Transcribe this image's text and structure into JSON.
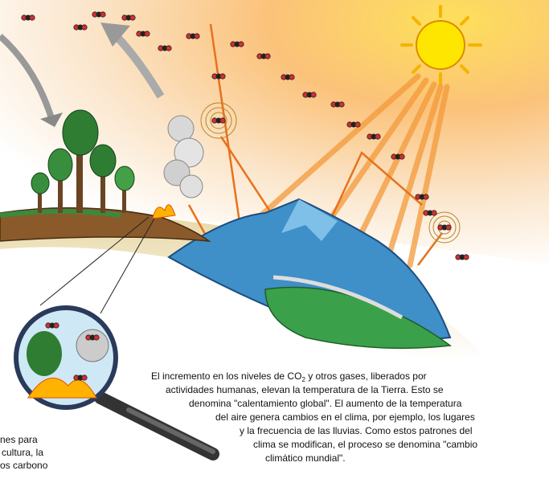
{
  "paragraph": {
    "line1": {
      "before": "El incremento en los niveles de CO",
      "sub": "2",
      "after": " y otros gases, liberados por"
    },
    "lines": [
      "actividades humanas, elevan la temperatura de la Tierra. Esto se",
      "denomina \"calentamiento global\". El aumento de la temperatura",
      "del aire genera cambios en el clima, por ejemplo, los lugares",
      "y la frecuencia de las lluvias. Como estos patrones del",
      "clima se modifican, el proceso se denomina \"cambio",
      "climático mundial\"."
    ]
  },
  "left_text": {
    "lines": [
      "nes para",
      "cultura, la",
      "os carbono"
    ]
  }
}
